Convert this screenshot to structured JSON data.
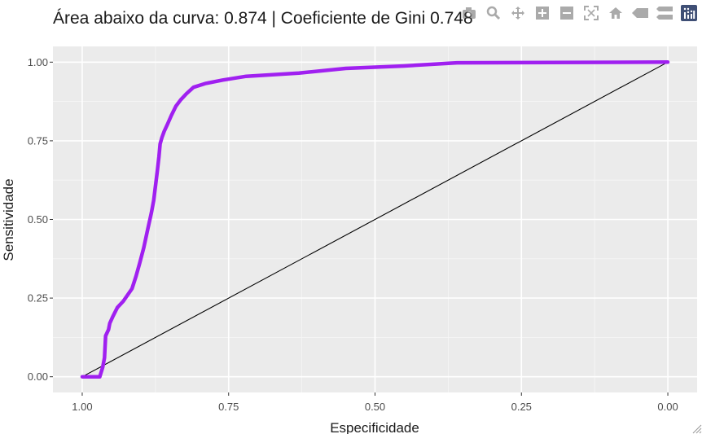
{
  "chart_data": {
    "type": "line",
    "title": "Área abaixo da curva: 0.874 | Coeficiente de Gini 0.748",
    "xlabel": "Especificidade",
    "ylabel": "Sensitividade",
    "xlim": [
      1.05,
      -0.05
    ],
    "ylim": [
      -0.05,
      1.05
    ],
    "x_reversed": true,
    "xticks": [
      1.0,
      0.75,
      0.5,
      0.25,
      0.0
    ],
    "xtick_labels": [
      "1.00",
      "0.75",
      "0.50",
      "0.25",
      "0.00"
    ],
    "yticks": [
      0.0,
      0.25,
      0.5,
      0.75,
      1.0
    ],
    "ytick_labels": [
      "0.00",
      "0.25",
      "0.50",
      "0.75",
      "1.00"
    ],
    "grid": true,
    "background": "#ebebeb",
    "series": [
      {
        "color": "#a020f0",
        "x": [
          1.0,
          0.97,
          0.965,
          0.962,
          0.96,
          0.955,
          0.953,
          0.948,
          0.94,
          0.93,
          0.915,
          0.908,
          0.902,
          0.895,
          0.888,
          0.882,
          0.878,
          0.872,
          0.869,
          0.867,
          0.864,
          0.86,
          0.855,
          0.848,
          0.84,
          0.832,
          0.822,
          0.81,
          0.79,
          0.76,
          0.72,
          0.63,
          0.55,
          0.45,
          0.36,
          0.2,
          0.0
        ],
        "y": [
          0.0,
          0.0,
          0.03,
          0.06,
          0.13,
          0.15,
          0.17,
          0.19,
          0.22,
          0.24,
          0.28,
          0.32,
          0.36,
          0.41,
          0.47,
          0.52,
          0.56,
          0.65,
          0.7,
          0.74,
          0.76,
          0.78,
          0.8,
          0.83,
          0.86,
          0.88,
          0.9,
          0.92,
          0.932,
          0.943,
          0.955,
          0.965,
          0.98,
          0.988,
          0.998,
          0.999,
          1.0
        ]
      },
      {
        "color": "#000000",
        "x": [
          1.0,
          0.0
        ],
        "y": [
          0.0,
          1.0
        ]
      }
    ]
  },
  "modebar": {
    "buttons": [
      "camera-icon",
      "zoom-icon",
      "pan-icon",
      "zoom-in-icon",
      "zoom-out-icon",
      "autoscale-icon",
      "reset-axes-icon",
      "hover-closest-icon",
      "hover-compare-icon",
      "plotly-logo-icon"
    ]
  }
}
